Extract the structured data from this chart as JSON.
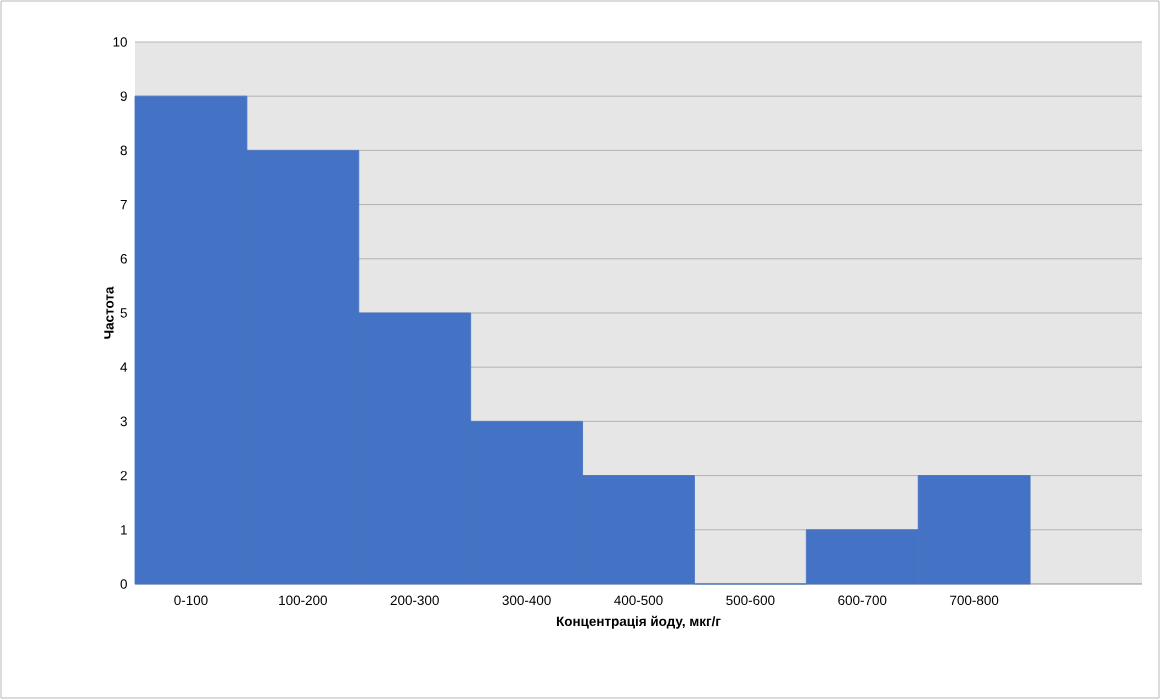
{
  "chart_data": {
    "type": "bar",
    "xlabel": "Концентрація йоду, мкг/г",
    "ylabel": "Частота",
    "categories": [
      "0-100",
      "100-200",
      "200-300",
      "300-400",
      "400-500",
      "500-600",
      "600-700",
      "700-800",
      null
    ],
    "values": [
      9,
      8,
      5,
      3,
      2,
      0,
      1,
      2,
      null
    ],
    "color": "#4472c4",
    "ylim": [
      0,
      10
    ],
    "yticks": [
      0,
      1,
      2,
      3,
      4,
      5,
      6,
      7,
      8,
      9,
      10
    ],
    "grid": "y"
  }
}
